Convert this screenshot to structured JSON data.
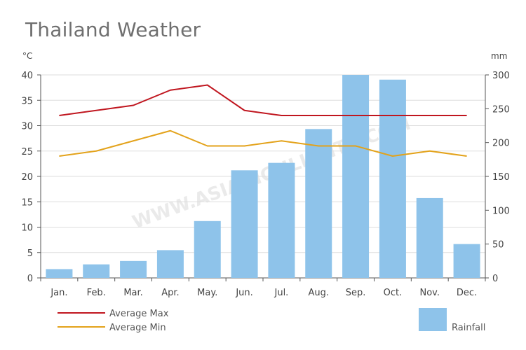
{
  "chart_data": {
    "type": "bar+line",
    "title": "Thailand Weather",
    "watermark": "WWW.ASIAHIGHLIGHTS.COM",
    "categories": [
      "Jan.",
      "Feb.",
      "Mar.",
      "Apr.",
      "May.",
      "Jun.",
      "Jul.",
      "Aug.",
      "Sep.",
      "Oct.",
      "Nov.",
      "Dec."
    ],
    "left_axis": {
      "unit": "°C",
      "ticks": [
        0,
        5,
        10,
        15,
        20,
        25,
        30,
        35,
        40
      ],
      "ylim": [
        0,
        40
      ]
    },
    "right_axis": {
      "unit": "mm",
      "ticks": [
        0,
        50,
        100,
        150,
        200,
        250,
        300
      ],
      "ylim": [
        0,
        300
      ]
    },
    "series": [
      {
        "name": "Average Max",
        "type": "line",
        "axis": "left",
        "color": "#c0161f",
        "values": [
          32,
          33,
          34,
          37,
          38,
          33,
          32,
          32,
          32,
          32,
          32,
          32
        ]
      },
      {
        "name": "Average Min",
        "type": "line",
        "axis": "left",
        "color": "#e3a21a",
        "values": [
          24,
          25,
          27,
          29,
          26,
          26,
          27,
          26,
          26,
          24,
          25,
          24
        ]
      },
      {
        "name": "Rainfall",
        "type": "bar",
        "axis": "right",
        "color": "#8ec3ea",
        "values": [
          13,
          20,
          25,
          41,
          84,
          159,
          170,
          220,
          300,
          293,
          118,
          50
        ]
      }
    ],
    "grid": true
  }
}
